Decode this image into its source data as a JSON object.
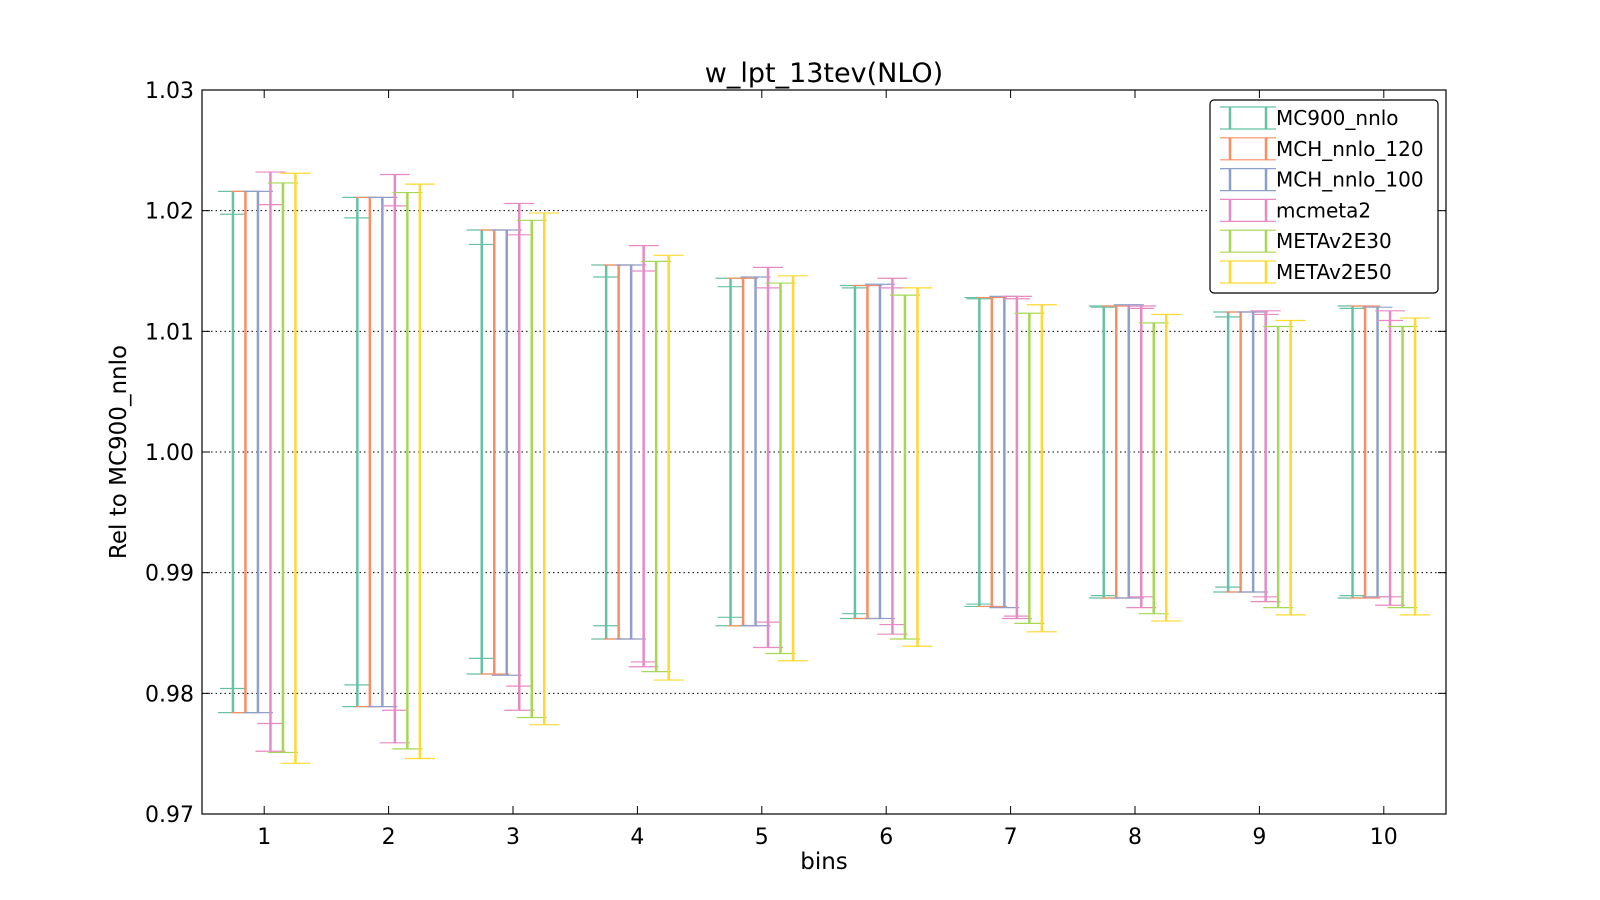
{
  "chart_data": {
    "type": "errorbar",
    "title": "w_lpt_13tev(NLO)",
    "xlabel": "bins",
    "ylabel": "Rel to MC900_nnlo",
    "ylim": [
      0.97,
      1.03
    ],
    "xlim": [
      0.5,
      10.5
    ],
    "yticks": [
      "0.97",
      "0.98",
      "0.99",
      "1.00",
      "1.01",
      "1.02",
      "1.03"
    ],
    "categories": [
      "1",
      "2",
      "3",
      "4",
      "5",
      "6",
      "7",
      "8",
      "9",
      "10"
    ],
    "grid": "horizontal dotted",
    "legend_position": "top-right",
    "series": [
      {
        "name": "MC900_nnlo",
        "color": "#66c2a5",
        "low": [
          0.9784,
          0.9789,
          0.9816,
          0.9845,
          0.9856,
          0.9862,
          0.9872,
          0.9879,
          0.9884,
          0.9879
        ],
        "high": [
          1.0216,
          1.0211,
          1.0184,
          1.0155,
          1.0144,
          1.0138,
          1.0128,
          1.0121,
          1.0116,
          1.0121
        ],
        "inner_low": [
          0.9804,
          0.9807,
          0.9829,
          0.9856,
          0.9863,
          0.9866,
          0.9874,
          0.9881,
          0.9888,
          0.9881
        ],
        "inner_high": [
          1.0197,
          1.0194,
          1.0172,
          1.0145,
          1.0137,
          1.0136,
          1.0127,
          1.012,
          1.0112,
          1.0119
        ]
      },
      {
        "name": "MCH_nnlo_120",
        "color": "#fc8d62",
        "low": [
          0.9784,
          0.9789,
          0.9816,
          0.9845,
          0.9856,
          0.9862,
          0.9872,
          0.9879,
          0.9884,
          0.9879
        ],
        "high": [
          1.0216,
          1.0211,
          1.0184,
          1.0155,
          1.0144,
          1.0138,
          1.0128,
          1.0121,
          1.0116,
          1.0121
        ]
      },
      {
        "name": "MCH_nnlo_100",
        "color": "#8da0cb",
        "low": [
          0.9784,
          0.9789,
          0.9815,
          0.9845,
          0.9856,
          0.9862,
          0.9871,
          0.9879,
          0.9884,
          0.988
        ],
        "high": [
          1.0216,
          1.0211,
          1.0184,
          1.0155,
          1.0145,
          1.0139,
          1.0129,
          1.0122,
          1.0116,
          1.012
        ]
      },
      {
        "name": "mcmeta2",
        "color": "#e78ac3",
        "low": [
          0.9752,
          0.9759,
          0.9786,
          0.9822,
          0.9838,
          0.9849,
          0.9862,
          0.9871,
          0.9876,
          0.9873
        ],
        "high": [
          1.0232,
          1.023,
          1.0206,
          1.0171,
          1.0153,
          1.0144,
          1.0129,
          1.0121,
          1.0117,
          1.0117
        ],
        "inner_low": [
          0.9775,
          0.9786,
          0.9806,
          0.9826,
          0.9859,
          0.9857,
          0.9864,
          0.988,
          0.988,
          0.988
        ],
        "inner_high": [
          1.0205,
          1.0204,
          1.018,
          1.015,
          1.0136,
          1.0136,
          1.0127,
          1.0119,
          1.0114,
          1.0109
        ]
      },
      {
        "name": "METAv2E30",
        "color": "#a6d854",
        "low": [
          0.9751,
          0.9754,
          0.978,
          0.9818,
          0.9833,
          0.9845,
          0.9858,
          0.9866,
          0.9871,
          0.9871
        ],
        "high": [
          1.0223,
          1.0215,
          1.0192,
          1.0158,
          1.014,
          1.013,
          1.0115,
          1.0107,
          1.0104,
          1.0104
        ]
      },
      {
        "name": "METAv2E50",
        "color": "#ffd92f",
        "low": [
          0.9742,
          0.9746,
          0.9774,
          0.9811,
          0.9827,
          0.9839,
          0.9851,
          0.986,
          0.9865,
          0.9865
        ],
        "high": [
          1.0231,
          1.0222,
          1.0198,
          1.0163,
          1.0146,
          1.0136,
          1.0122,
          1.0114,
          1.0109,
          1.0111
        ]
      }
    ]
  }
}
